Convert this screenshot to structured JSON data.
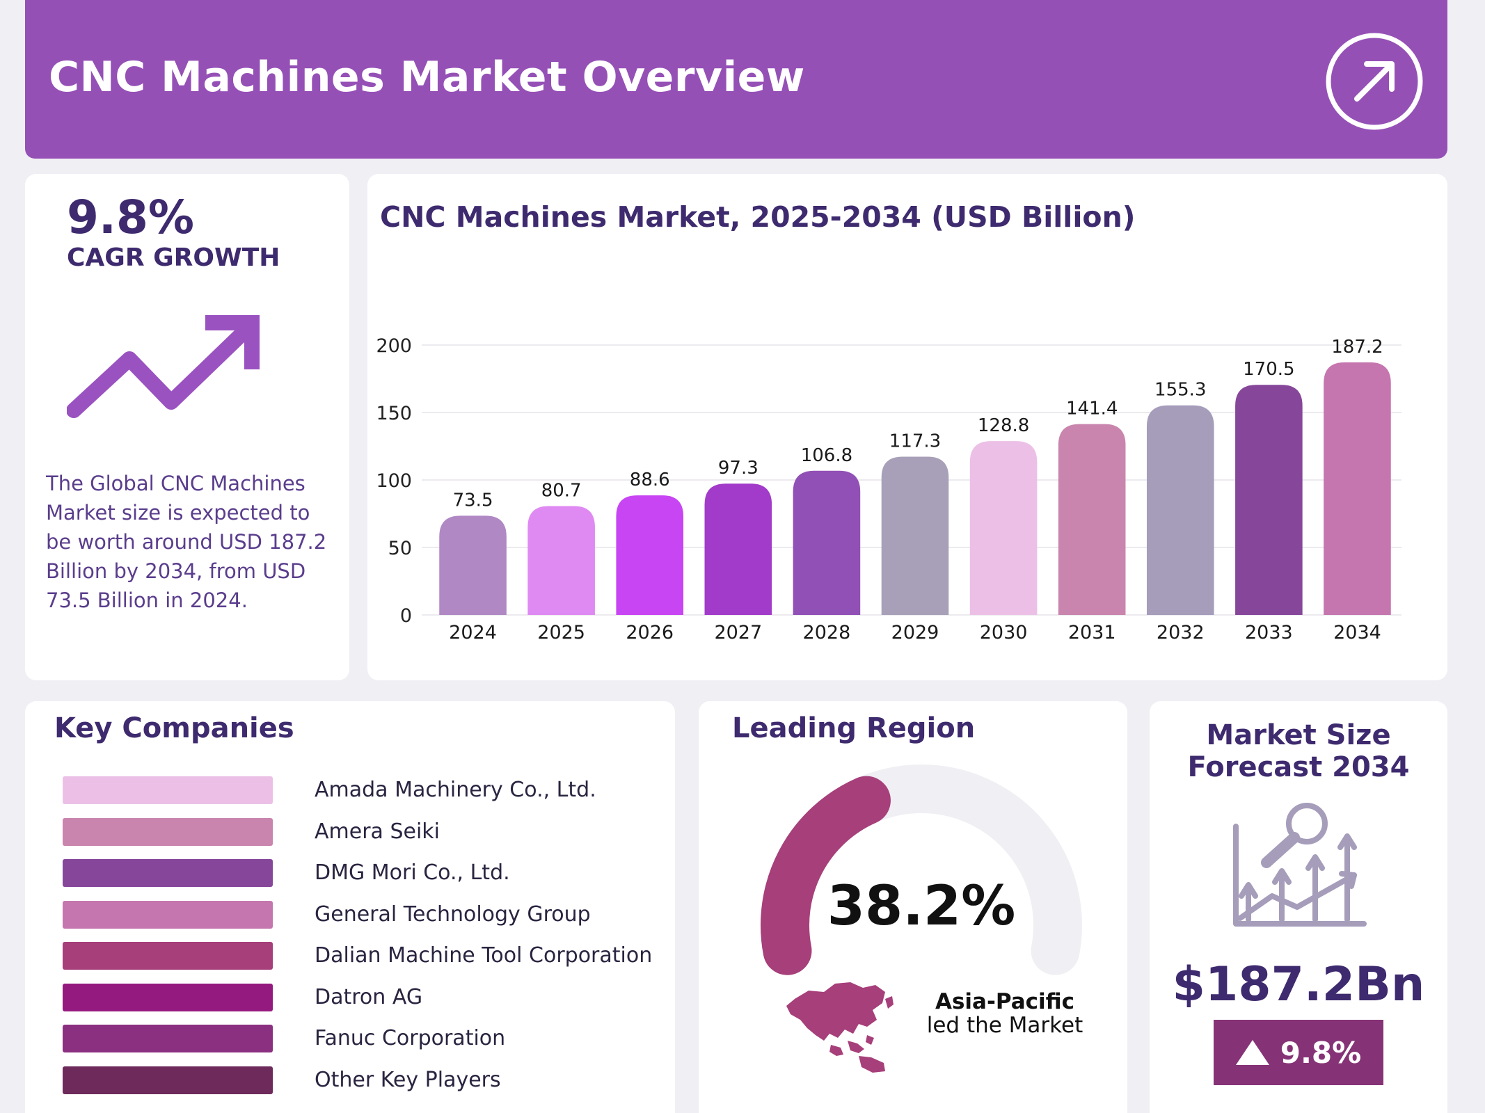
{
  "header": {
    "title": "CNC Machines Market Overview",
    "icon": "arrow-up-right-icon"
  },
  "cagr": {
    "value": "9.8%",
    "label": "CAGR GROWTH",
    "icon": "trend-up-arrow-icon",
    "description": "The Global CNC Machines Market size is expected to be worth around USD 187.2 Billion by 2034, from USD 73.5 Billion in 2024."
  },
  "chart_data": {
    "type": "bar",
    "title": "CNC Machines Market, 2025-2034 (USD Billion)",
    "categories": [
      "2024",
      "2025",
      "2026",
      "2027",
      "2028",
      "2029",
      "2030",
      "2031",
      "2032",
      "2033",
      "2034"
    ],
    "values": [
      73.5,
      80.7,
      88.6,
      97.3,
      106.8,
      117.3,
      128.8,
      141.4,
      155.3,
      170.5,
      187.2
    ],
    "colors": [
      "#b088c4",
      "#df8af3",
      "#c845f3",
      "#a23bc9",
      "#9150b6",
      "#a8a0b8",
      "#ecc0e6",
      "#c985ad",
      "#a59dba",
      "#86479b",
      "#c576ae"
    ],
    "xlabel": "",
    "ylabel": "",
    "ylim": [
      0,
      200
    ],
    "yticks": [
      0,
      50,
      100,
      150,
      200
    ],
    "grid": true,
    "data_labels": true
  },
  "companies": {
    "title": "Key Companies",
    "items": [
      {
        "name": "Amada Machinery Co., Ltd.",
        "color": "#ecc0e6"
      },
      {
        "name": "Amera Seiki",
        "color": "#c985ad"
      },
      {
        "name": "DMG Mori Co., Ltd.",
        "color": "#86479b"
      },
      {
        "name": "General Technology Group",
        "color": "#c576ae"
      },
      {
        "name": "Dalian Machine Tool Corporation",
        "color": "#a63f7a"
      },
      {
        "name": "Datron AG",
        "color": "#951a7f"
      },
      {
        "name": "Fanuc Corporation",
        "color": "#8b3080"
      },
      {
        "name": "Other Key Players",
        "color": "#6e2a5a"
      }
    ]
  },
  "region": {
    "title": "Leading Region",
    "value": "38.2%",
    "share": 0.382,
    "name": "Asia-Pacific",
    "subtitle": "led the Market",
    "icon": "asia-pacific-map-icon",
    "accent": "#a63f7a",
    "track": "#f0eff4"
  },
  "forecast": {
    "title_line1": "Market Size",
    "title_line2": "Forecast 2034",
    "icon": "growth-analysis-icon",
    "value": "$187.2Bn",
    "badge": "9.8%",
    "badge_icon": "triangle-up-icon"
  }
}
